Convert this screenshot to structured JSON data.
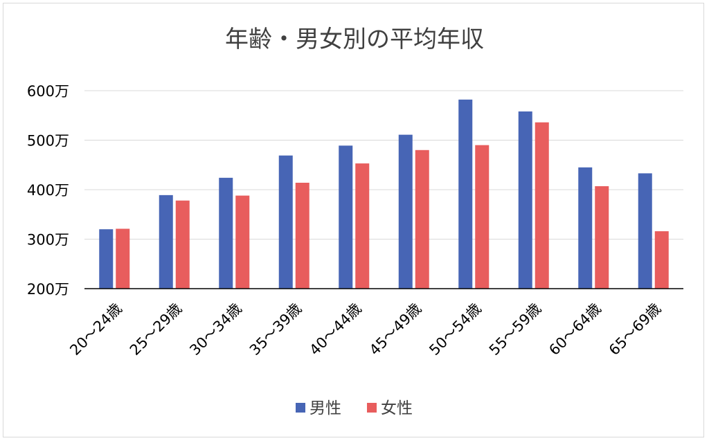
{
  "chart_data": {
    "type": "bar",
    "title": "年齢・男女別の平均年収",
    "categories": [
      "20〜24歳",
      "25〜29歳",
      "30〜34歳",
      "35〜39歳",
      "40〜44歳",
      "45〜49歳",
      "50〜54歳",
      "55〜59歳",
      "60〜64歳",
      "65〜69歳"
    ],
    "series": [
      {
        "name": "男性",
        "color": "#4765b5",
        "values": [
          320,
          389,
          424,
          469,
          489,
          511,
          582,
          558,
          445,
          433
        ]
      },
      {
        "name": "女性",
        "color": "#e85d5d",
        "values": [
          321,
          378,
          388,
          414,
          453,
          480,
          490,
          536,
          407,
          316
        ]
      }
    ],
    "yticks": [
      200,
      300,
      400,
      500,
      600
    ],
    "ytick_labels": [
      "200万",
      "300万",
      "400万",
      "500万",
      "600万"
    ],
    "ylim": [
      200,
      600
    ],
    "xlabel": "",
    "ylabel": "",
    "grid": true,
    "legend_position": "bottom"
  }
}
